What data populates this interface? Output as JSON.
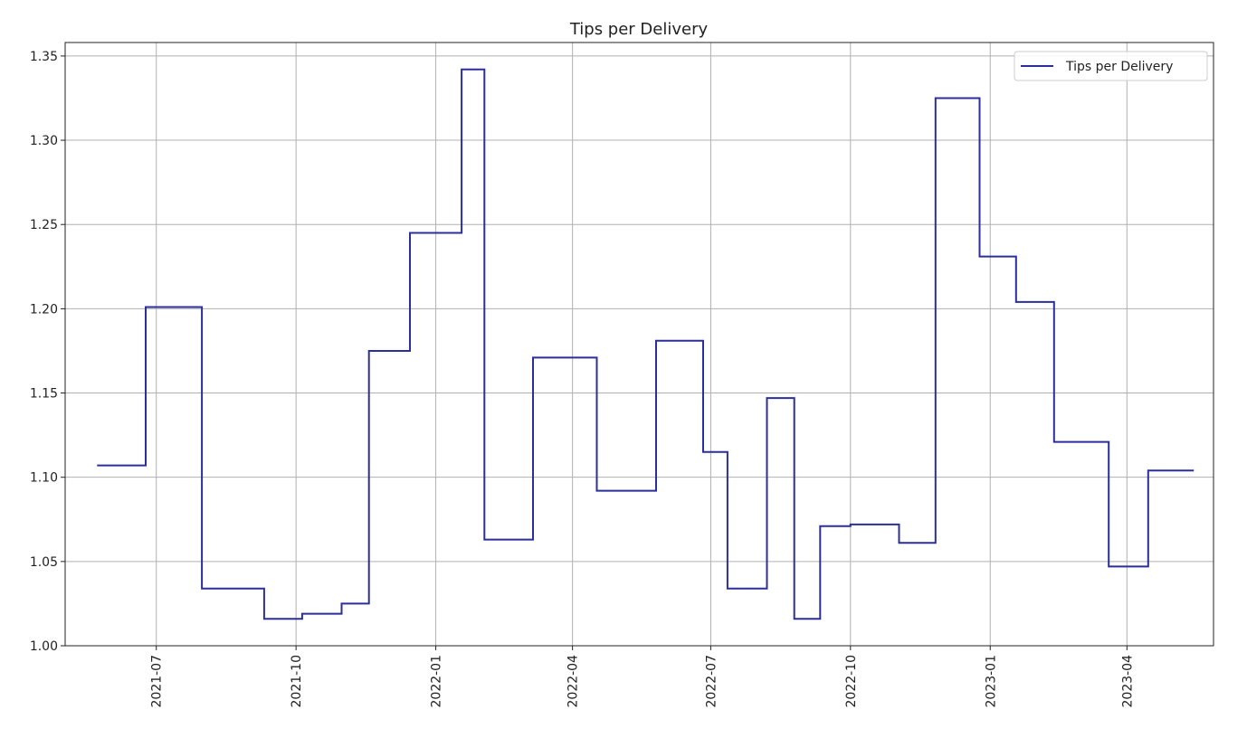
{
  "chart_data": {
    "type": "line",
    "title": "Tips per Delivery",
    "xlabel": "",
    "ylabel": "",
    "line_style": "step",
    "grid": true,
    "legend_position": "top-right",
    "xlim": [
      "2021-05-02",
      "2023-05-28"
    ],
    "ylim": [
      1.0,
      1.358
    ],
    "x_ticks": [
      "2021-07-01",
      "2021-10-01",
      "2022-01-01",
      "2022-04-01",
      "2022-07-01",
      "2022-10-01",
      "2023-01-01",
      "2023-04-01"
    ],
    "x_tick_labels": [
      "2021-07",
      "2021-10",
      "2022-01",
      "2022-04",
      "2022-07",
      "2022-10",
      "2023-01",
      "2023-04"
    ],
    "y_ticks": [
      1.0,
      1.05,
      1.1,
      1.15,
      1.2,
      1.25,
      1.3,
      1.35
    ],
    "y_tick_labels": [
      "1.00",
      "1.05",
      "1.10",
      "1.15",
      "1.20",
      "1.25",
      "1.30",
      "1.35"
    ],
    "series": [
      {
        "name": "Tips per Delivery",
        "color": "#2b2f9c",
        "points": [
          {
            "x": "2021-05-23",
            "y": 1.107
          },
          {
            "x": "2021-06-24",
            "y": 1.201
          },
          {
            "x": "2021-07-31",
            "y": 1.034
          },
          {
            "x": "2021-09-10",
            "y": 1.016
          },
          {
            "x": "2021-10-05",
            "y": 1.019
          },
          {
            "x": "2021-10-31",
            "y": 1.025
          },
          {
            "x": "2021-11-18",
            "y": 1.175
          },
          {
            "x": "2021-12-15",
            "y": 1.245
          },
          {
            "x": "2022-01-18",
            "y": 1.342
          },
          {
            "x": "2022-02-02",
            "y": 1.063
          },
          {
            "x": "2022-03-06",
            "y": 1.171
          },
          {
            "x": "2022-04-17",
            "y": 1.092
          },
          {
            "x": "2022-05-26",
            "y": 1.181
          },
          {
            "x": "2022-06-26",
            "y": 1.115
          },
          {
            "x": "2022-07-12",
            "y": 1.034
          },
          {
            "x": "2022-08-07",
            "y": 1.147
          },
          {
            "x": "2022-08-25",
            "y": 1.016
          },
          {
            "x": "2022-09-11",
            "y": 1.071
          },
          {
            "x": "2022-10-01",
            "y": 1.072
          },
          {
            "x": "2022-11-02",
            "y": 1.061
          },
          {
            "x": "2022-11-26",
            "y": 1.325
          },
          {
            "x": "2022-12-25",
            "y": 1.231
          },
          {
            "x": "2023-01-18",
            "y": 1.204
          },
          {
            "x": "2023-02-12",
            "y": 1.121
          },
          {
            "x": "2023-03-20",
            "y": 1.047
          },
          {
            "x": "2023-04-15",
            "y": 1.104
          },
          {
            "x": "2023-05-15",
            "y": 1.104
          }
        ]
      }
    ]
  }
}
